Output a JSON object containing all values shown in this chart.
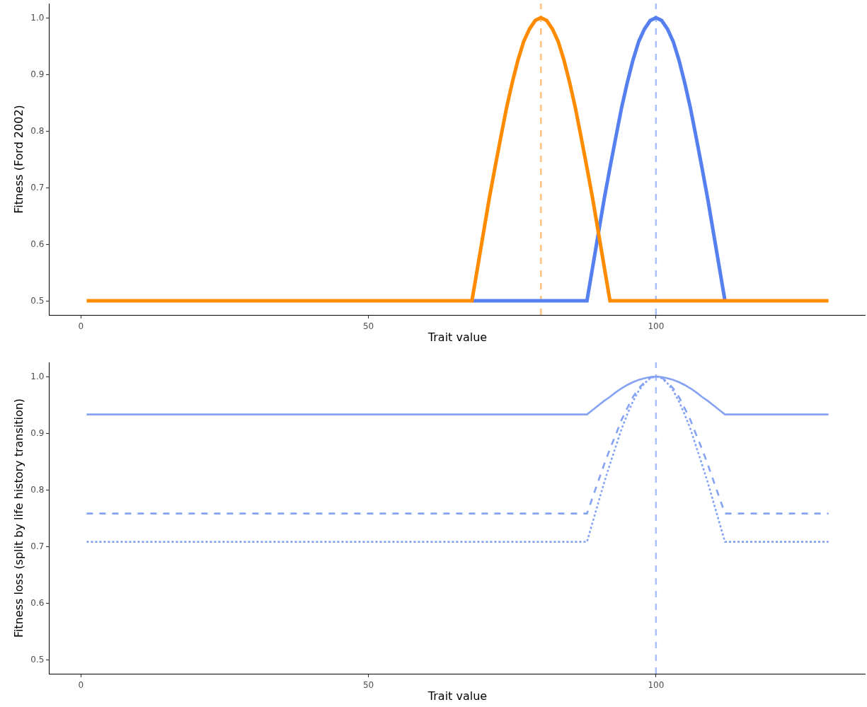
{
  "chart_data": [
    {
      "type": "line",
      "xlabel": "Trait value",
      "ylabel": "Fitness (Ford 2002)",
      "xlim": [
        -5.45,
        136.45
      ],
      "ylim": [
        0.475,
        1.025
      ],
      "xticks": [
        0,
        50,
        100
      ],
      "yticks": [
        {
          "value": 0.5,
          "label": "0.5"
        },
        {
          "value": 0.6,
          "label": "0.6"
        },
        {
          "value": 0.7,
          "label": "0.7"
        },
        {
          "value": 0.8,
          "label": "0.8"
        },
        {
          "value": 0.9,
          "label": "0.9"
        },
        {
          "value": 1.0,
          "label": "1.0"
        }
      ],
      "grid": false,
      "series": [
        {
          "color": "#5680f0",
          "line_style": "solid",
          "x": [
            68,
            88,
            89,
            90,
            91,
            92,
            93,
            94,
            95,
            96,
            97,
            98,
            99,
            100,
            101,
            102,
            103,
            104,
            105,
            106,
            107,
            108,
            109,
            110,
            111,
            112
          ],
          "values": [
            0.5,
            0.5,
            0.56,
            0.62,
            0.68,
            0.735,
            0.788,
            0.84,
            0.885,
            0.925,
            0.958,
            0.98,
            0.995,
            1.0,
            0.995,
            0.98,
            0.958,
            0.925,
            0.885,
            0.84,
            0.788,
            0.735,
            0.68,
            0.62,
            0.56,
            0.5
          ]
        },
        {
          "color": "#ff8c00",
          "line_style": "solid",
          "x": [
            1,
            68,
            69,
            70,
            71,
            72,
            73,
            74,
            75,
            76,
            77,
            78,
            79,
            80,
            81,
            82,
            83,
            84,
            85,
            86,
            87,
            88,
            89,
            90,
            91,
            92,
            130
          ],
          "values": [
            0.5,
            0.5,
            0.56,
            0.62,
            0.68,
            0.735,
            0.788,
            0.84,
            0.885,
            0.925,
            0.958,
            0.98,
            0.995,
            1.0,
            0.995,
            0.98,
            0.958,
            0.925,
            0.885,
            0.84,
            0.788,
            0.735,
            0.68,
            0.62,
            0.56,
            0.5,
            0.5
          ]
        }
      ],
      "ref_lines": [
        {
          "axis": "x",
          "value": 80,
          "color": "#ffc27d",
          "line_style": "dashed"
        },
        {
          "axis": "x",
          "value": 100,
          "color": "#a8bff7",
          "line_style": "dashed"
        }
      ]
    },
    {
      "type": "line",
      "xlabel": "Trait value",
      "ylabel": "Fitness loss (split by life history transition)",
      "xlim": [
        -5.45,
        136.45
      ],
      "ylim": [
        0.475,
        1.025
      ],
      "xticks": [
        0,
        50,
        100
      ],
      "yticks": [
        {
          "value": 0.5,
          "label": "0.5"
        },
        {
          "value": 0.6,
          "label": "0.6"
        },
        {
          "value": 0.7,
          "label": "0.7"
        },
        {
          "value": 0.8,
          "label": "0.8"
        },
        {
          "value": 0.9,
          "label": "0.9"
        },
        {
          "value": 1.0,
          "label": "1.0"
        }
      ],
      "grid": false,
      "series": [
        {
          "color": "#85a3f2",
          "line_style": "solid",
          "x": [
            1,
            88,
            89,
            90,
            91,
            92,
            93,
            94,
            95,
            96,
            97,
            98,
            99,
            100,
            101,
            102,
            103,
            104,
            105,
            106,
            107,
            108,
            109,
            110,
            111,
            112,
            130
          ],
          "values": [
            0.933,
            0.933,
            0.941,
            0.949,
            0.957,
            0.964,
            0.972,
            0.979,
            0.985,
            0.99,
            0.994,
            0.997,
            0.999,
            1.0,
            0.999,
            0.997,
            0.994,
            0.99,
            0.985,
            0.979,
            0.972,
            0.964,
            0.957,
            0.949,
            0.941,
            0.933,
            0.933
          ]
        },
        {
          "color": "#85a3f2",
          "line_style": "dashed",
          "x": [
            1,
            88,
            89,
            90,
            91,
            92,
            93,
            94,
            95,
            96,
            97,
            98,
            99,
            100,
            101,
            102,
            103,
            104,
            105,
            106,
            107,
            108,
            109,
            110,
            111,
            112,
            130
          ],
          "values": [
            0.758,
            0.758,
            0.787,
            0.816,
            0.845,
            0.872,
            0.897,
            0.923,
            0.944,
            0.964,
            0.979,
            0.99,
            0.998,
            1.0,
            0.998,
            0.99,
            0.979,
            0.964,
            0.944,
            0.923,
            0.897,
            0.872,
            0.845,
            0.816,
            0.787,
            0.758,
            0.758
          ]
        },
        {
          "color": "#85a3f2",
          "line_style": "dotted",
          "x": [
            1,
            88,
            89,
            90,
            91,
            92,
            93,
            94,
            95,
            96,
            97,
            98,
            99,
            100,
            101,
            102,
            103,
            104,
            105,
            106,
            107,
            108,
            109,
            110,
            111,
            112,
            130
          ],
          "values": [
            0.708,
            0.708,
            0.743,
            0.778,
            0.813,
            0.845,
            0.876,
            0.907,
            0.933,
            0.956,
            0.975,
            0.988,
            0.997,
            1.0,
            0.997,
            0.988,
            0.975,
            0.956,
            0.933,
            0.907,
            0.876,
            0.845,
            0.813,
            0.778,
            0.743,
            0.708,
            0.708
          ]
        }
      ],
      "ref_lines": [
        {
          "axis": "x",
          "value": 100,
          "color": "#a8bff7",
          "line_style": "dashed"
        }
      ]
    }
  ]
}
